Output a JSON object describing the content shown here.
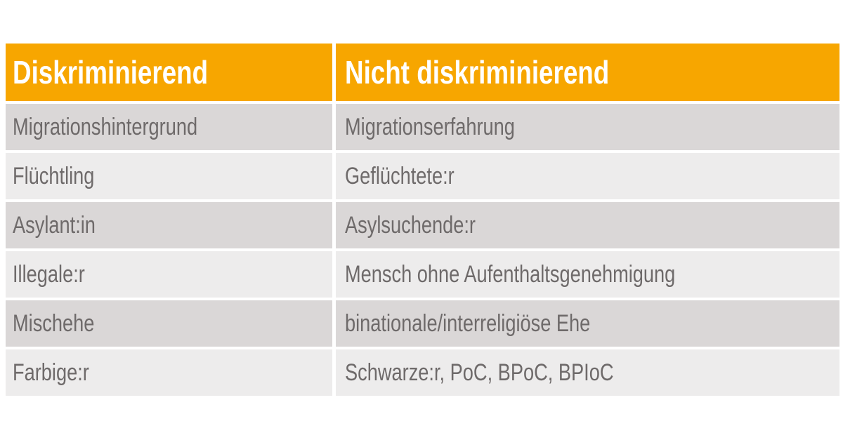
{
  "theme": {
    "page_bg": "#FFFFFF",
    "header_bg": "#F7A600",
    "header_text": "#FFFFFF",
    "row_dark": "#DAD7D7",
    "row_light": "#EDECEC",
    "body_text": "#6E6A6A"
  },
  "chart_data": {
    "type": "table",
    "columns": [
      "Diskriminierend",
      "Nicht diskriminierend"
    ],
    "rows": [
      [
        "Migrationshintergrund",
        "Migrationserfahrung"
      ],
      [
        "Flüchtling",
        "Geflüchtete:r"
      ],
      [
        "Asylant:in",
        "Asylsuchende:r"
      ],
      [
        "Illegale:r",
        "Mensch ohne Aufenthaltsgenehmigung"
      ],
      [
        "Mischehe",
        "binationale/interreligiöse Ehe"
      ],
      [
        "Farbige:r",
        "Schwarze:r, PoC, BPoC, BPIoC"
      ]
    ],
    "layout": {
      "banding": "alternating dark/light gray rows",
      "header_style": "orange background, white bold text"
    }
  }
}
